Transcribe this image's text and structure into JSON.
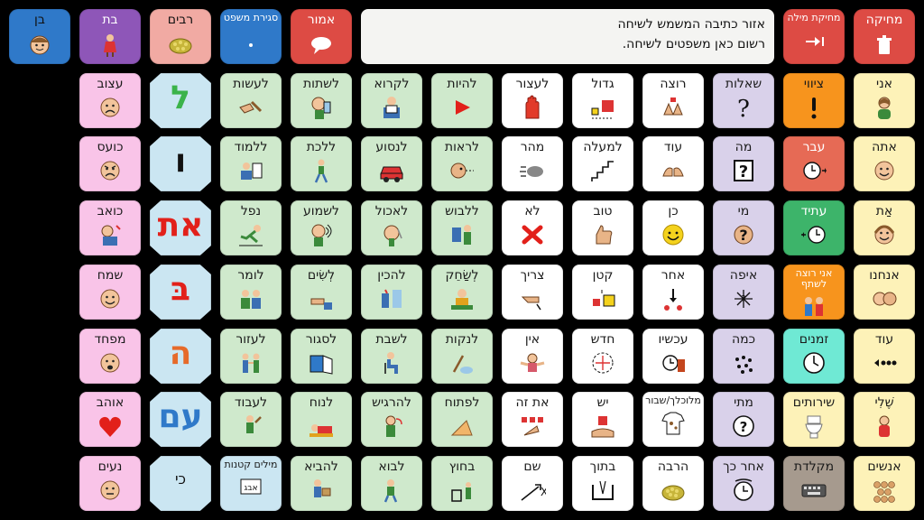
{
  "colors": {
    "background": "#000000",
    "pronoun_yellow": "#fdf2b8",
    "question_purple": "#d9d1ea",
    "adjective_white": "#ffffff",
    "verb_green": "#cfe9cc",
    "letter_blue": "#cbe6f2",
    "feeling_pink": "#f9c4e8",
    "top_red": "#dd4b44",
    "top_blue": "#2f79c9",
    "top_purple": "#8e56b8",
    "top_salmon": "#f1aaa3",
    "accent_orange": "#f7941d",
    "accent_teal": "#6fe9d4",
    "accent_green": "#3db46a",
    "accent_grey": "#a69a8e"
  },
  "text_area": {
    "line1": "אזור כתיבה המשמש לשיחה",
    "line2": "רשום כאן משפטים לשיחה."
  },
  "top_bar": {
    "clear": "מחיקה",
    "delete_word": "מחיקת מילה",
    "say": "אמור",
    "close_sentence": "סגירת משפט",
    "plural": "רבים",
    "girl": "בת",
    "boy": "בן"
  },
  "columns": [
    {
      "key": "c0",
      "words": [
        "אני",
        "אתה",
        "אַת",
        "אנחנו",
        "עוד",
        "שֶׁלִי",
        "אנשים"
      ],
      "icons": [
        "woman-icon",
        "boy-face-icon",
        "girl-face-icon",
        "two-faces-icon",
        "more-dots-icon",
        "mine-icon",
        "people-icon"
      ]
    },
    {
      "key": "c1",
      "words": [
        "ציווי",
        "עבר",
        "עתיד",
        "אני רוצה לשתף",
        "זמנים",
        "שירותים",
        "מקלדת"
      ],
      "icons": [
        "exclamation-icon",
        "clock-back-icon",
        "clock-forward-icon",
        "share-icon",
        "clock-icon",
        "toilet-icon",
        "keyboard-icon"
      ]
    },
    {
      "key": "c2",
      "words": [
        "שאלות",
        "מה",
        "מי",
        "איפה",
        "כמה",
        "מתי",
        "אחר כך"
      ],
      "icons": [
        "question-mark-icon",
        "question-box-icon",
        "question-head-icon",
        "where-icon",
        "how-many-icon",
        "when-icon",
        "later-icon"
      ]
    },
    {
      "key": "c3",
      "words": [
        "רוצה",
        "עוד",
        "כן",
        "אחר",
        "עכשיו",
        "מלוכלך/שבור",
        "הרבה"
      ],
      "icons": [
        "want-icon",
        "more-hands-icon",
        "yes-smiley-icon",
        "other-icon",
        "now-icon",
        "dirty-shirt-icon",
        "many-icon"
      ]
    },
    {
      "key": "c4",
      "words": [
        "גדול",
        "למעלה",
        "טוב",
        "קטן",
        "חדש",
        "יש",
        "בתוך"
      ],
      "icons": [
        "big-icon",
        "stairs-up-icon",
        "thumbs-up-icon",
        "small-icon",
        "new-icon",
        "have-icon",
        "inside-icon"
      ]
    },
    {
      "key": "c5",
      "words": [
        "לעצור",
        "מהר",
        "לא",
        "צריך",
        "אין",
        "את זה",
        "שם"
      ],
      "icons": [
        "stop-hand-icon",
        "fast-icon",
        "no-cross-icon",
        "need-icon",
        "none-icon",
        "this-icon",
        "there-icon"
      ]
    },
    {
      "key": "c6",
      "words": [
        "להיות",
        "לראות",
        "ללבוש",
        "לְשַׂחֵק",
        "לנקות",
        "לפתוח",
        "בחוץ"
      ],
      "icons": [
        "play-arrow-icon",
        "see-icon",
        "wear-icon",
        "play-icon",
        "clean-icon",
        "open-icon",
        "outside-icon"
      ]
    },
    {
      "key": "c7",
      "words": [
        "לקרוא",
        "לנסוע",
        "לאכול",
        "להכין",
        "לשבת",
        "להרגיש",
        "לבוא"
      ],
      "icons": [
        "read-icon",
        "drive-car-icon",
        "eat-icon",
        "make-icon",
        "sit-icon",
        "feel-icon",
        "come-icon"
      ]
    },
    {
      "key": "c8",
      "words": [
        "לשתות",
        "ללכת",
        "לשמוע",
        "לְשִׂים",
        "לסגור",
        "לנוח",
        "להביא"
      ],
      "icons": [
        "drink-icon",
        "walk-icon",
        "hear-icon",
        "put-icon",
        "close-icon",
        "rest-icon",
        "bring-icon"
      ]
    },
    {
      "key": "c9",
      "words": [
        "לעשות",
        "ללמוד",
        "נפל",
        "לומר",
        "לעזור",
        "לעבוד",
        "מילים קטנות"
      ],
      "icons": [
        "do-icon",
        "learn-icon",
        "fall-icon",
        "say-icon",
        "help-icon",
        "work-icon",
        "small-words-icon"
      ]
    }
  ],
  "letters": [
    "ל",
    "ו",
    "את",
    "בּ",
    "ה",
    "עם",
    "כי"
  ],
  "feelings": {
    "words": [
      "עצוב",
      "כועס",
      "כואב",
      "שמח",
      "מפחד",
      "אוהב",
      "נעים"
    ],
    "icons": [
      "sad-face-icon",
      "angry-face-icon",
      "hurt-icon",
      "happy-face-icon",
      "scared-face-icon",
      "heart-icon",
      "pleasant-face-icon"
    ]
  }
}
